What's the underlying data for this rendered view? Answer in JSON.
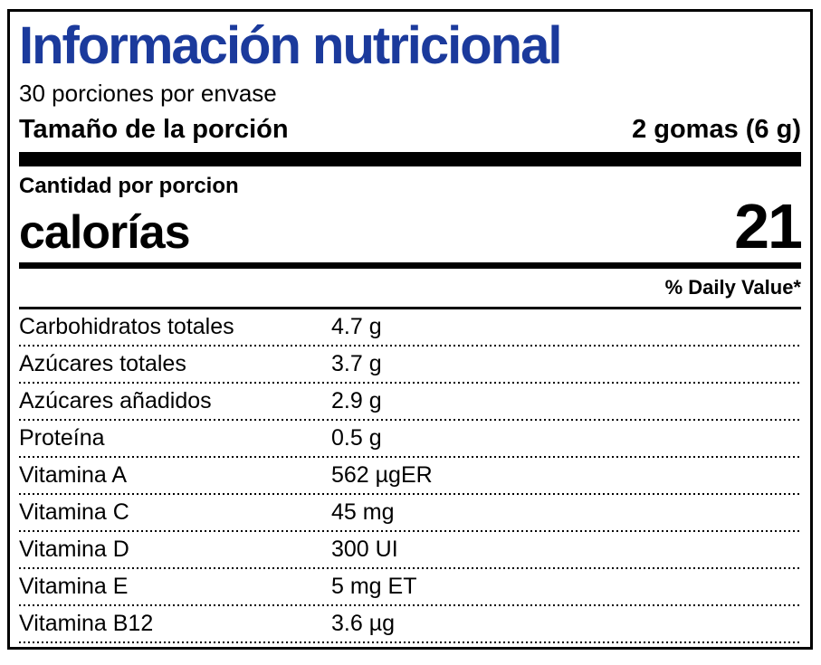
{
  "label": {
    "title": "Información nutricional",
    "servings_per_container": "30 porciones por envase",
    "serving_size_label": "Tamaño de la porción",
    "serving_size_value": "2 gomas (6 g)",
    "amount_per_serving": "Cantidad por porcion",
    "calories_label": "calorías",
    "calories_value": "21",
    "daily_value_header": "% Daily Value*",
    "colors": {
      "title_blue": "#1b3a9c",
      "text": "#000000",
      "background": "#ffffff"
    },
    "nutrients": [
      {
        "name": "Carbohidratos totales",
        "amount": "4.7 g"
      },
      {
        "name": "Azúcares totales",
        "amount": "3.7 g"
      },
      {
        "name": "Azúcares añadidos",
        "amount": "2.9 g"
      },
      {
        "name": "Proteína",
        "amount": "0.5 g"
      },
      {
        "name": "Vitamina A",
        "amount": "562 µgER"
      },
      {
        "name": "Vitamina C",
        "amount": "45 mg"
      },
      {
        "name": "Vitamina D",
        "amount": "300 UI"
      },
      {
        "name": "Vitamina E",
        "amount": "5 mg ET"
      },
      {
        "name": "Vitamina B12",
        "amount": "3.6 µg"
      }
    ]
  }
}
